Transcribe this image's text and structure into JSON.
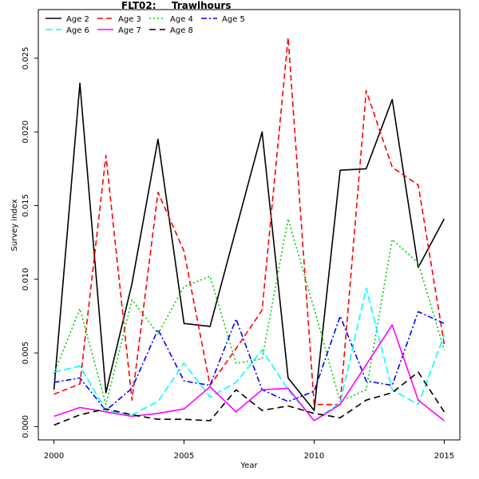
{
  "chart_data": {
    "type": "line",
    "title_left": "FLT02:",
    "title_right": "Trawlhours",
    "xlabel": "Year",
    "ylabel": "Survey index",
    "xlim": [
      1999.4,
      2015.6
    ],
    "ylim": [
      -0.0009,
      0.0283
    ],
    "x_ticks": [
      2000,
      2005,
      2010,
      2015
    ],
    "y_ticks": [
      "0.000",
      "0.005",
      "0.010",
      "0.015",
      "0.020",
      "0.025"
    ],
    "y_tick_values": [
      0.0,
      0.005,
      0.01,
      0.015,
      0.02,
      0.025
    ],
    "legend_position": "top-left",
    "x": [
      2000,
      2001,
      2002,
      2003,
      2004,
      2005,
      2006,
      2007,
      2008,
      2009,
      2010,
      2011,
      2012,
      2013,
      2014,
      2015
    ],
    "series": [
      {
        "name": "Age 2",
        "color": "#000000",
        "dash": "",
        "values": [
          0.0025,
          0.0233,
          0.0023,
          0.0097,
          0.0195,
          0.007,
          0.0068,
          0.0134,
          0.02,
          0.0033,
          0.0011,
          0.0174,
          0.0175,
          0.0222,
          0.0108,
          0.0141
        ]
      },
      {
        "name": "Age 3",
        "color": "#ff0000",
        "dash": "7,4",
        "values": [
          0.0022,
          0.0029,
          0.0184,
          0.0018,
          0.0159,
          0.0119,
          0.0028,
          0.0053,
          0.0079,
          0.0264,
          0.0015,
          0.0015,
          0.0228,
          0.0176,
          0.0164,
          0.0056
        ]
      },
      {
        "name": "Age 4",
        "color": "#00cd00",
        "dash": "2,3",
        "values": [
          0.0036,
          0.008,
          0.0015,
          0.0086,
          0.0063,
          0.0095,
          0.0102,
          0.0043,
          0.0046,
          0.0141,
          0.008,
          0.0017,
          0.0025,
          0.0127,
          0.0111,
          0.0052
        ]
      },
      {
        "name": "Age 5",
        "color": "#0000ff",
        "dash": "7,3,2,3",
        "values": [
          0.003,
          0.0033,
          0.0011,
          0.0026,
          0.0066,
          0.0031,
          0.0028,
          0.0073,
          0.0025,
          0.0017,
          0.0024,
          0.0075,
          0.0031,
          0.0028,
          0.0078,
          0.007
        ]
      },
      {
        "name": "Age 6",
        "color": "#00ffff",
        "dash": "9,4",
        "values": [
          0.0037,
          0.0041,
          0.0011,
          0.0008,
          0.0017,
          0.0043,
          0.002,
          0.003,
          0.0052,
          0.0025,
          0.0004,
          0.0016,
          0.0094,
          0.0025,
          0.0015,
          0.0062
        ]
      },
      {
        "name": "Age 7",
        "color": "#ff00ff",
        "dash": "",
        "values": [
          0.0007,
          0.0013,
          0.001,
          0.0007,
          0.0009,
          0.0012,
          0.0027,
          0.001,
          0.0025,
          0.0026,
          0.0004,
          0.0015,
          0.0042,
          0.0069,
          0.0018,
          0.0004
        ]
      },
      {
        "name": "Age 8",
        "color": "#000000",
        "dash": "8,5",
        "values": [
          0.0001,
          0.0008,
          0.0012,
          0.0008,
          0.0005,
          0.0005,
          0.0004,
          0.0025,
          0.0011,
          0.0014,
          0.0009,
          0.0006,
          0.0018,
          0.0023,
          0.0037,
          0.001
        ]
      }
    ]
  }
}
